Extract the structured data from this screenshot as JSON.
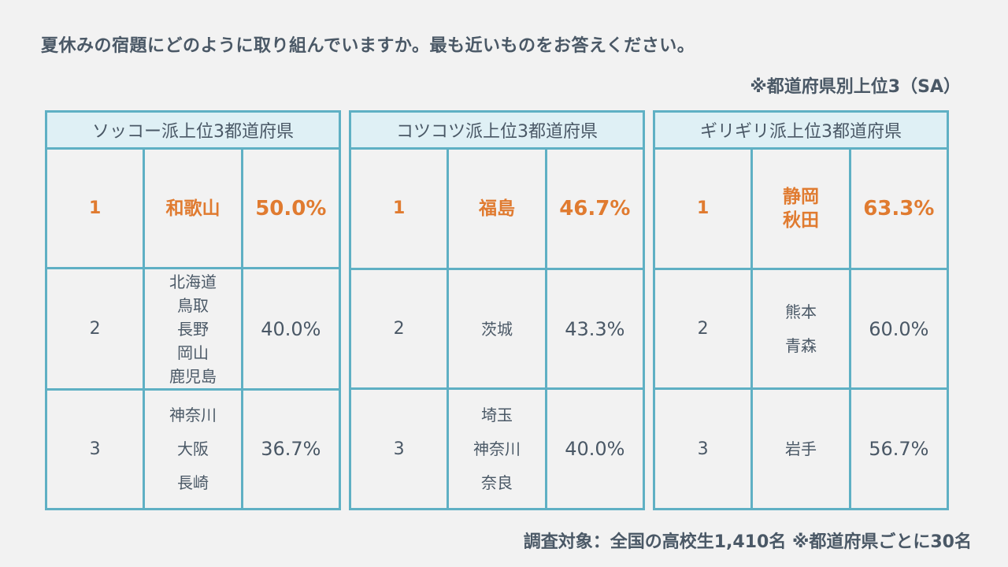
{
  "question": "夏休みの宿題にどのように取り組んでいますか。最も近いものをお答えください。",
  "note": "※都道府県別上位3（SA）",
  "footer": "調査対象：全国の高校生1,410名 ※都道府県ごとに30名",
  "colors": {
    "border": "#5fb0c4",
    "header_bg": "#dff0f5",
    "highlight": "#e07b30",
    "text": "#4a5866"
  },
  "tables": [
    {
      "title": "ソッコー派上位3都道府県",
      "rows": [
        {
          "rank": "1",
          "prefs": [
            "和歌山"
          ],
          "pct": "50.0%"
        },
        {
          "rank": "2",
          "prefs": [
            "北海道",
            "鳥取",
            "長野",
            "岡山",
            "鹿児島"
          ],
          "pct": "40.0%"
        },
        {
          "rank": "3",
          "prefs": [
            "神奈川",
            "大阪",
            "長崎"
          ],
          "pct": "36.7%"
        }
      ]
    },
    {
      "title": "コツコツ派上位3都道府県",
      "rows": [
        {
          "rank": "1",
          "prefs": [
            "福島"
          ],
          "pct": "46.7%"
        },
        {
          "rank": "2",
          "prefs": [
            "茨城"
          ],
          "pct": "43.3%"
        },
        {
          "rank": "3",
          "prefs": [
            "埼玉",
            "神奈川",
            "奈良"
          ],
          "pct": "40.0%"
        }
      ]
    },
    {
      "title": "ギリギリ派上位3都道府県",
      "rows": [
        {
          "rank": "1",
          "prefs": [
            "静岡",
            "秋田"
          ],
          "pct": "63.3%"
        },
        {
          "rank": "2",
          "prefs": [
            "熊本",
            "青森"
          ],
          "pct": "60.0%"
        },
        {
          "rank": "3",
          "prefs": [
            "岩手"
          ],
          "pct": "56.7%"
        }
      ]
    }
  ]
}
